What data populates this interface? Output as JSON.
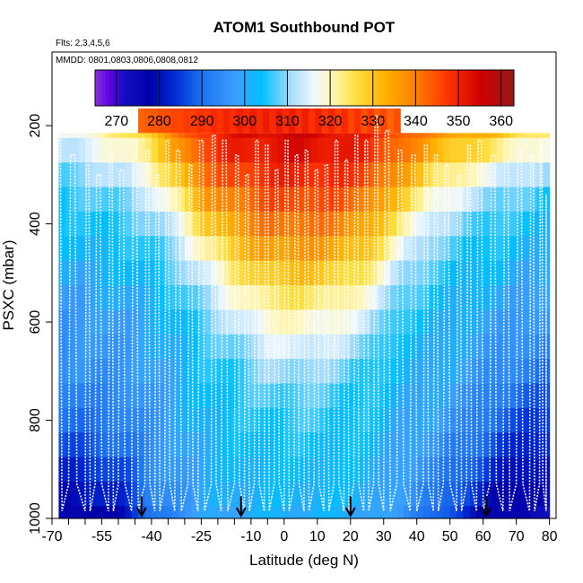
{
  "chart_data": {
    "type": "heatmap",
    "title": "ATOM1 Southbound POT",
    "flights_note": "Flts: 2,3,4,5,6",
    "dates_note": "MMDD: 0801,0803,0806,0808,0812",
    "xlabel": "Latitude (deg N)",
    "ylabel": "PSXC (mbar)",
    "xlim": [
      -70,
      82
    ],
    "ylim": [
      1000,
      50
    ],
    "x_ticks": [
      -70,
      -55,
      -40,
      -25,
      -10,
      0,
      10,
      20,
      30,
      40,
      50,
      60,
      70,
      80
    ],
    "x_tick_labels": [
      "-70",
      "-55",
      "-40",
      "-25",
      "-10",
      "0",
      "10",
      "20",
      "30",
      "40",
      "50",
      "60",
      "70",
      "80"
    ],
    "x_minor_ticks": [
      -65,
      -60,
      -50,
      -45,
      -35,
      -30,
      -20,
      -15,
      -5
    ],
    "y_ticks": [
      200,
      400,
      600,
      800,
      1000
    ],
    "y_tick_labels": [
      "200",
      "400",
      "600",
      "800",
      "1000"
    ],
    "colorbar": {
      "min": 265,
      "max": 363,
      "ticks": [
        270,
        280,
        290,
        300,
        310,
        320,
        330,
        340,
        350,
        360
      ],
      "tick_labels": [
        "270",
        "280",
        "290",
        "300",
        "310",
        "320",
        "330",
        "340",
        "350",
        "360"
      ],
      "colors": [
        "#7a18e8",
        "#0000a8",
        "#0030e0",
        "#1e90ff",
        "#00bfff",
        "#e8f6ff",
        "#ffd700",
        "#ff8c00",
        "#e00000",
        "#a01010"
      ]
    },
    "color_scale": [
      {
        "value": 265,
        "color": "#8a2be2"
      },
      {
        "value": 269,
        "color": "#5500dd"
      },
      {
        "value": 272,
        "color": "#1010c0"
      },
      {
        "value": 278,
        "color": "#0000a8"
      },
      {
        "value": 284,
        "color": "#0030d8"
      },
      {
        "value": 290,
        "color": "#1e74f0"
      },
      {
        "value": 298,
        "color": "#3aa0ff"
      },
      {
        "value": 304,
        "color": "#00c0ff"
      },
      {
        "value": 311,
        "color": "#a8dcff"
      },
      {
        "value": 316,
        "color": "#eef8ff"
      },
      {
        "value": 320,
        "color": "#fff8c0"
      },
      {
        "value": 326,
        "color": "#ffe040"
      },
      {
        "value": 333,
        "color": "#ffb000"
      },
      {
        "value": 340,
        "color": "#ff8000"
      },
      {
        "value": 348,
        "color": "#ff3000"
      },
      {
        "value": 355,
        "color": "#d00000"
      },
      {
        "value": 363,
        "color": "#981818"
      }
    ],
    "pressure_levels": [
      200,
      250,
      300,
      350,
      400,
      450,
      500,
      550,
      600,
      650,
      700,
      750,
      800,
      850,
      900,
      950,
      1000
    ],
    "lat_bins": [
      -68,
      -62,
      -56,
      -50,
      -44,
      -38,
      -32,
      -26,
      -20,
      -14,
      -8,
      -2,
      4,
      10,
      16,
      22,
      28,
      34,
      40,
      46,
      52,
      58,
      64,
      70,
      76,
      80
    ],
    "profile_points": [
      {
        "lat": -68,
        "pot": [
          316,
          313,
          308,
          305,
          304,
          302,
          300,
          298,
          296,
          295,
          294,
          291,
          289,
          287,
          283,
          280,
          276
        ]
      },
      {
        "lat": -62,
        "pot": [
          318,
          314,
          309,
          306,
          304,
          302,
          300,
          298,
          297,
          296,
          295,
          292,
          290,
          287,
          283,
          279,
          275
        ]
      },
      {
        "lat": -56,
        "pot": [
          320,
          316,
          311,
          307,
          305,
          303,
          301,
          299,
          297,
          296,
          295,
          293,
          291,
          288,
          284,
          281,
          278
        ]
      },
      {
        "lat": -48,
        "pot": [
          324,
          319,
          314,
          309,
          306,
          304,
          302,
          300,
          298,
          297,
          296,
          294,
          292,
          290,
          287,
          284,
          280
        ]
      },
      {
        "lat": -40,
        "pot": [
          330,
          325,
          319,
          313,
          309,
          306,
          304,
          302,
          300,
          299,
          298,
          297,
          296,
          295,
          294,
          292,
          290
        ]
      },
      {
        "lat": -32,
        "pot": [
          340,
          336,
          330,
          323,
          316,
          311,
          308,
          305,
          303,
          302,
          301,
          300,
          299,
          298,
          297,
          296,
          295
        ]
      },
      {
        "lat": -25,
        "pot": [
          348,
          346,
          341,
          334,
          327,
          320,
          314,
          310,
          307,
          305,
          304,
          303,
          302,
          301,
          300,
          299,
          298
        ]
      },
      {
        "lat": -15,
        "pot": [
          352,
          350,
          346,
          341,
          336,
          330,
          324,
          318,
          313,
          309,
          306,
          305,
          304,
          303,
          302,
          301,
          300
        ]
      },
      {
        "lat": -5,
        "pot": [
          354,
          352,
          349,
          345,
          341,
          336,
          330,
          324,
          319,
          314,
          310,
          307,
          305,
          304,
          303,
          302,
          301
        ]
      },
      {
        "lat": 5,
        "pot": [
          355,
          353,
          350,
          346,
          342,
          337,
          331,
          325,
          320,
          315,
          311,
          308,
          306,
          304,
          303,
          302,
          301
        ]
      },
      {
        "lat": 15,
        "pot": [
          353,
          352,
          349,
          345,
          340,
          335,
          329,
          323,
          318,
          313,
          309,
          306,
          305,
          304,
          303,
          302,
          301
        ]
      },
      {
        "lat": 25,
        "pot": [
          350,
          349,
          346,
          340,
          335,
          330,
          324,
          318,
          313,
          309,
          306,
          305,
          304,
          303,
          302,
          301,
          300
        ]
      },
      {
        "lat": 35,
        "pot": [
          345,
          342,
          336,
          329,
          323,
          317,
          312,
          308,
          305,
          303,
          302,
          301,
          300,
          299,
          298,
          297,
          296
        ]
      },
      {
        "lat": 45,
        "pot": [
          338,
          333,
          326,
          319,
          313,
          309,
          306,
          304,
          302,
          301,
          300,
          299,
          298,
          296,
          294,
          292,
          290
        ]
      },
      {
        "lat": 55,
        "pot": [
          334,
          328,
          320,
          313,
          308,
          305,
          303,
          301,
          300,
          299,
          298,
          296,
          294,
          291,
          288,
          285,
          282
        ]
      },
      {
        "lat": 65,
        "pot": [
          330,
          323,
          315,
          309,
          306,
          304,
          302,
          300,
          298,
          296,
          294,
          291,
          288,
          285,
          282,
          279,
          276
        ]
      },
      {
        "lat": 72,
        "pot": [
          326,
          319,
          312,
          307,
          304,
          302,
          300,
          298,
          296,
          294,
          292,
          289,
          286,
          283,
          280,
          277,
          275
        ]
      },
      {
        "lat": 80,
        "pot": [
          322,
          316,
          310,
          305,
          303,
          301,
          299,
          297,
          295,
          293,
          290,
          287,
          284,
          281,
          278,
          276,
          274
        ]
      }
    ],
    "upper_block": {
      "lat_start": -44,
      "lat_end": 35,
      "top_pressure": 165,
      "values": [
        345,
        348,
        350,
        350,
        348,
        345
      ]
    },
    "descent_markers_lat": [
      -43,
      -13,
      20,
      61
    ],
    "flight_track_zigzag": {
      "description": "white flight track lines (vertical profiling legs)",
      "turn_lats": [
        -69,
        -65,
        -60,
        -57,
        -53,
        -50,
        -46,
        -42,
        -39,
        -36,
        -33,
        -29,
        -26,
        -22,
        -19,
        -15,
        -12,
        -9,
        -6,
        -3,
        0,
        3,
        6,
        9,
        12,
        15,
        18,
        21,
        24,
        27,
        30,
        34,
        38,
        42,
        45,
        48,
        52,
        55,
        58,
        62,
        66,
        70,
        74,
        77,
        79
      ],
      "top_pressures": [
        220,
        260,
        280,
        300,
        250,
        290,
        230,
        250,
        300,
        230,
        250,
        280,
        230,
        220,
        230,
        260,
        300,
        230,
        240,
        290,
        230,
        260,
        250,
        290,
        280,
        230,
        270,
        220,
        230,
        180,
        210,
        250,
        260,
        240,
        260,
        280,
        300,
        240,
        230,
        260,
        270,
        250,
        260,
        230,
        340
      ]
    }
  }
}
